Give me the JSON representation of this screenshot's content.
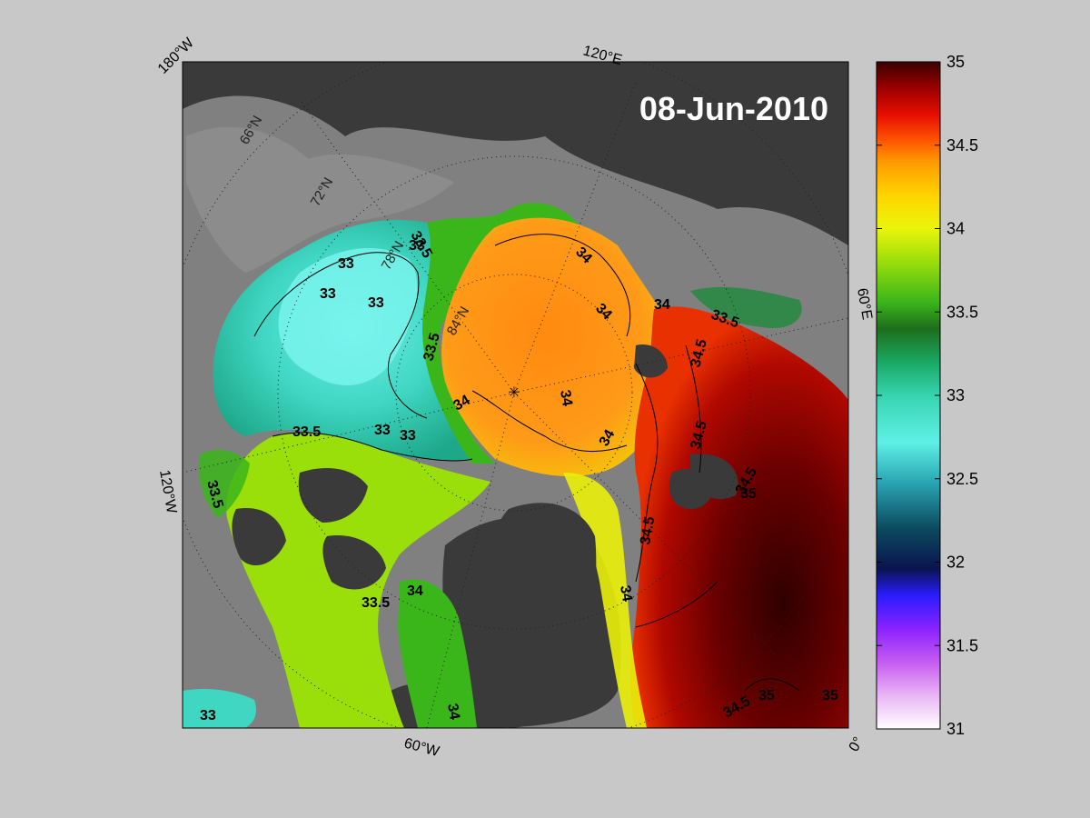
{
  "map": {
    "date": "08-Jun-2010",
    "longitude_labels": [
      "180°W",
      "120°E",
      "60°E",
      "0°",
      "60°W",
      "120°W"
    ],
    "latitude_labels": [
      "66°N",
      "72°N",
      "78°N",
      "84°N"
    ],
    "contour_labels": [
      "33",
      "33",
      "33",
      "33",
      "33",
      "33",
      "33",
      "33.5",
      "33.5",
      "33.5",
      "33.5",
      "33.5",
      "33.5",
      "34",
      "34",
      "34",
      "34",
      "34",
      "34",
      "34",
      "34",
      "34",
      "34.5",
      "34.5",
      "34.5",
      "34.5",
      "34.5",
      "35",
      "35",
      "35"
    ]
  },
  "colorbar": {
    "min": 31,
    "max": 35,
    "ticks": [
      "35",
      "34.5",
      "34",
      "33.5",
      "33",
      "32.5",
      "32",
      "31.5",
      "31"
    ],
    "colors": [
      "#ffffff",
      "#e9b6f5",
      "#c65cf0",
      "#8a22ff",
      "#2a1cff",
      "#0a1450",
      "#0b4a5e",
      "#2aa6b4",
      "#5ff0e6",
      "#37d4b0",
      "#1aa864",
      "#1d6e1a",
      "#3bb61a",
      "#9ade0a",
      "#eaf50a",
      "#ffd400",
      "#ff9a00",
      "#ff5a00",
      "#e80e00",
      "#9e0000",
      "#3a0000"
    ]
  }
}
